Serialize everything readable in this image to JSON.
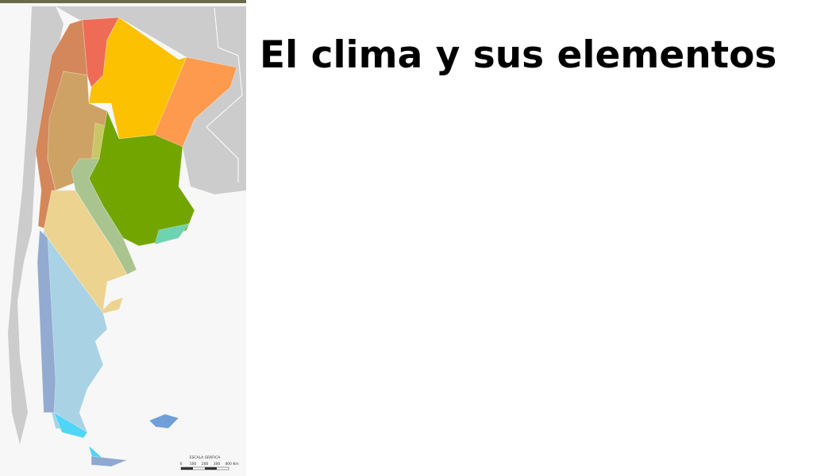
{
  "title": "El clima y sus elementos",
  "map": {
    "scale_title": "ESCALA GRÁFICA",
    "scale_labels": [
      "0",
      "100",
      "200",
      "300",
      "400 Km"
    ]
  }
}
